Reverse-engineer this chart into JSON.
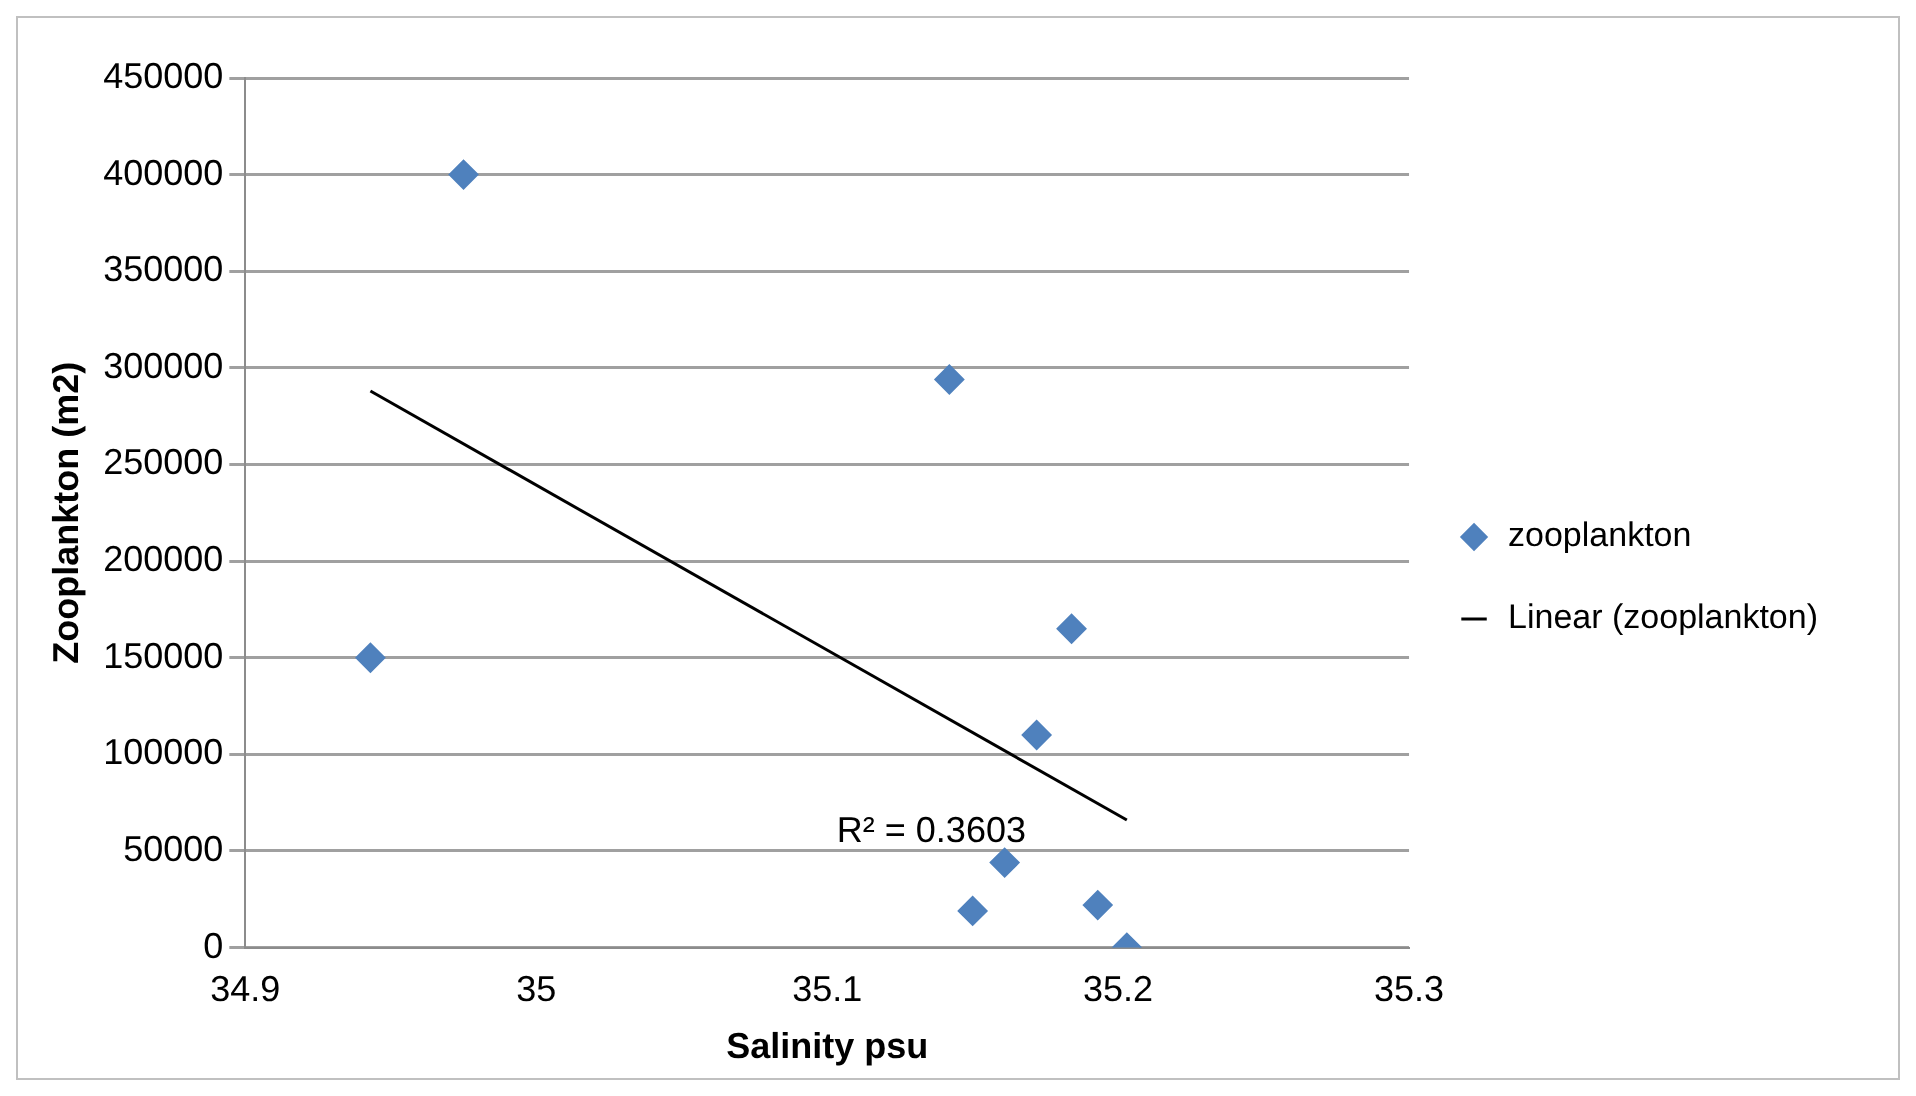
{
  "chart_data": {
    "type": "scatter",
    "xlabel": "Salinity psu",
    "ylabel": "Zooplankton (m2)",
    "xlim": [
      34.9,
      35.3
    ],
    "xticks": [
      34.9,
      35,
      35.1,
      35.2,
      35.3
    ],
    "ylim": [
      0,
      450000
    ],
    "yticks": [
      0,
      50000,
      100000,
      150000,
      200000,
      250000,
      300000,
      350000,
      400000,
      450000
    ],
    "grid": "y",
    "legend": "right",
    "annotations": [
      "R² = 0.3603"
    ],
    "series": [
      {
        "name": "zooplankton",
        "marker": "diamond",
        "color": "#4f81bd",
        "x": [
          34.975,
          34.943,
          35.142,
          35.184,
          35.172,
          35.161,
          35.15,
          35.193,
          35.203
        ],
        "values": [
          400000,
          150000,
          294000,
          165000,
          110000,
          44000,
          19000,
          22000,
          0
        ]
      },
      {
        "name": "Linear (zooplankton)",
        "type": "line",
        "color": "#000000",
        "x": [
          34.943,
          35.203
        ],
        "values": [
          288000,
          66000
        ]
      }
    ]
  }
}
